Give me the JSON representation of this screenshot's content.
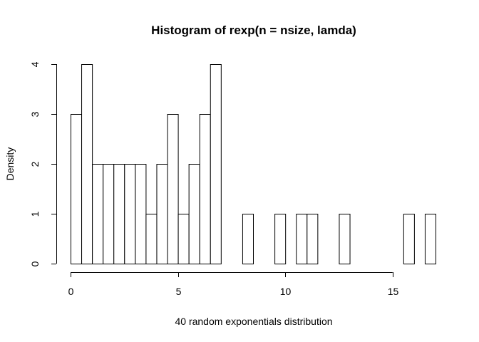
{
  "chart_data": {
    "type": "bar",
    "title": "Histogram of rexp(n = nsize, lamda)",
    "xlabel": "40 random exponentials distribution",
    "ylabel": "Density",
    "bin_width": 0.5,
    "bins_start": [
      0,
      0.5,
      1,
      1.5,
      2,
      2.5,
      3,
      3.5,
      4,
      4.5,
      5,
      5.5,
      6,
      6.5,
      7,
      7.5,
      8,
      8.5,
      9,
      9.5,
      10,
      10.5,
      11,
      11.5,
      12,
      12.5,
      13,
      13.5,
      14,
      14.5,
      15,
      15.5,
      16,
      16.5
    ],
    "values": [
      3,
      4,
      2,
      2,
      2,
      2,
      2,
      1,
      2,
      3,
      1,
      2,
      3,
      4,
      0,
      0,
      1,
      0,
      0,
      1,
      0,
      1,
      1,
      0,
      0,
      1,
      0,
      0,
      0,
      0,
      0,
      1,
      0,
      1
    ],
    "xlim": [
      0,
      17
    ],
    "ylim": [
      0,
      4
    ],
    "x_ticks": [
      0,
      5,
      10,
      15
    ],
    "y_ticks": [
      0,
      1,
      2,
      3,
      4
    ],
    "grid": false,
    "bar_fill": "#ffffff",
    "bar_stroke": "#000000"
  }
}
